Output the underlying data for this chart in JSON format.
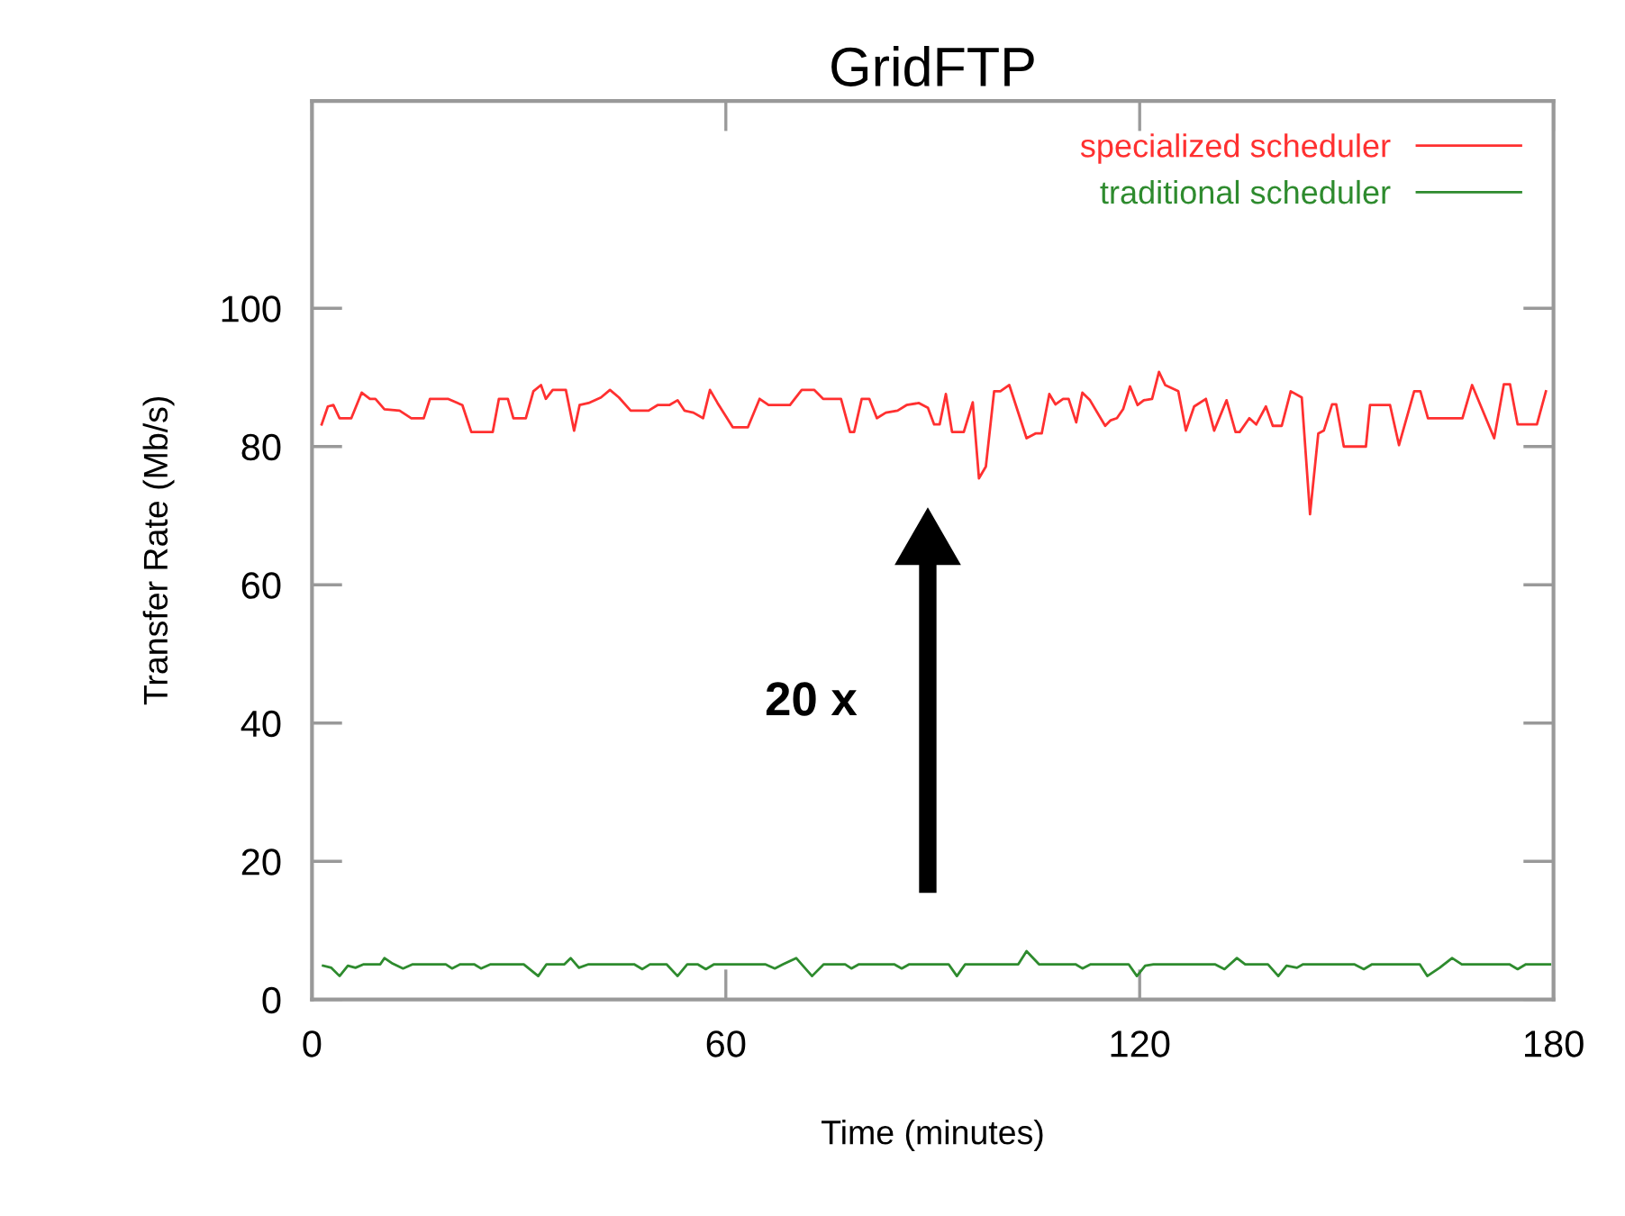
{
  "chart_data": {
    "type": "line",
    "title": "GridFTP",
    "xlabel": "Time (minutes)",
    "ylabel": "Transfer Rate (Mb/s)",
    "xlim": [
      0,
      180
    ],
    "xticks": [
      0,
      60,
      120,
      180
    ],
    "ylim": [
      0,
      130
    ],
    "yticks": [
      0,
      20,
      40,
      60,
      80,
      100
    ],
    "grid": false,
    "legend": "top right",
    "marker": "none",
    "line_style": "solid",
    "annotations": [
      "20 x"
    ],
    "series": [
      {
        "name": "specialized scheduler",
        "color": "#ff3030",
        "x": [
          1.4,
          2.3,
          3.1,
          4.0,
          5.7,
          7.2,
          8.4,
          9.2,
          10.5,
          12.7,
          14.4,
          16.2,
          17.1,
          19.7,
          21.8,
          23.1,
          26.2,
          27.1,
          28.4,
          29.2,
          31.0,
          32.1,
          33.2,
          33.9,
          34.9,
          36.8,
          38.0,
          38.8,
          40.1,
          41.9,
          43.2,
          44.5,
          46.2,
          48.8,
          50.1,
          51.8,
          53.0,
          54.0,
          55.3,
          56.7,
          57.7,
          58.8,
          61.0,
          63.2,
          64.9,
          66.2,
          69.3,
          71.0,
          72.8,
          74.1,
          76.7,
          78.0,
          78.6,
          79.7,
          80.8,
          81.9,
          83.2,
          84.9,
          86.2,
          88.0,
          89.3,
          90.2,
          91.0,
          91.9,
          92.8,
          94.5,
          95.8,
          96.7,
          97.7,
          98.9,
          99.8,
          101.1,
          103.6,
          104.9,
          105.8,
          106.9,
          107.8,
          108.9,
          109.7,
          110.8,
          111.7,
          112.8,
          115.0,
          115.8,
          116.7,
          117.6,
          118.6,
          119.7,
          120.6,
          121.8,
          122.8,
          123.7,
          125.6,
          126.7,
          127.9,
          129.6,
          130.8,
          132.6,
          133.9,
          134.5,
          135.9,
          136.9,
          138.3,
          139.3,
          140.6,
          141.9,
          143.5,
          144.7,
          145.9,
          146.7,
          147.9,
          148.5,
          149.6,
          152.8,
          153.4,
          156.3,
          157.6,
          159.8,
          160.7,
          161.8,
          166.8,
          168.2,
          171.4,
          172.8,
          173.7,
          174.8,
          177.6,
          178.9
        ],
        "values": [
          83.2,
          85.8,
          86.0,
          84.1,
          84.1,
          87.8,
          86.9,
          86.9,
          85.4,
          85.2,
          84.1,
          84.1,
          86.9,
          86.9,
          86.0,
          82.1,
          82.1,
          86.9,
          86.9,
          84.1,
          84.1,
          88.0,
          88.9,
          86.9,
          88.2,
          88.2,
          82.3,
          86.0,
          86.3,
          87.1,
          88.2,
          87.1,
          85.2,
          85.2,
          86.0,
          86.0,
          86.7,
          85.2,
          84.9,
          84.1,
          88.2,
          86.3,
          82.8,
          82.8,
          86.9,
          86.0,
          86.0,
          88.2,
          88.2,
          86.9,
          86.9,
          82.1,
          82.1,
          86.9,
          86.9,
          84.1,
          84.9,
          85.2,
          86.0,
          86.3,
          85.6,
          83.2,
          83.2,
          87.6,
          82.1,
          82.1,
          86.4,
          75.4,
          77.1,
          88.0,
          88.0,
          88.9,
          81.2,
          81.9,
          81.9,
          87.6,
          86.1,
          86.9,
          86.9,
          83.5,
          87.8,
          86.7,
          83.0,
          83.8,
          84.1,
          85.4,
          88.7,
          86.0,
          86.7,
          86.9,
          90.8,
          88.9,
          88.0,
          82.3,
          85.8,
          86.9,
          82.3,
          86.7,
          82.1,
          82.1,
          84.1,
          83.2,
          85.8,
          83.0,
          83.0,
          88.0,
          87.1,
          70.2,
          81.9,
          82.3,
          86.1,
          86.1,
          80.0,
          80.0,
          86.0,
          86.0,
          80.2,
          88.0,
          88.0,
          84.1,
          84.1,
          88.9,
          81.2,
          89.0,
          89.0,
          83.2,
          83.2,
          88.0
        ]
      },
      {
        "name": "traditional scheduler",
        "color": "#2e8b2e",
        "x": [
          1.6,
          2.8,
          4.0,
          5.2,
          6.3,
          7.5,
          9.9,
          10.5,
          11.7,
          13.2,
          14.6,
          19.4,
          20.3,
          21.5,
          23.5,
          24.5,
          25.9,
          30.7,
          32.8,
          34.0,
          36.6,
          37.5,
          38.7,
          40.1,
          46.7,
          47.9,
          49.0,
          51.4,
          53.0,
          54.4,
          55.9,
          57.1,
          58.3,
          65.7,
          67.1,
          68.3,
          70.2,
          71.0,
          72.5,
          74.2,
          77.3,
          78.2,
          79.3,
          84.4,
          85.5,
          86.6,
          92.3,
          93.5,
          94.7,
          102.4,
          103.6,
          105.4,
          110.7,
          111.7,
          112.9,
          118.4,
          119.6,
          120.8,
          122.0,
          130.9,
          132.3,
          134.1,
          135.3,
          138.6,
          140.1,
          141.3,
          142.8,
          143.7,
          151.1,
          152.5,
          153.7,
          160.6,
          161.7,
          163.5,
          165.3,
          166.7,
          173.6,
          174.8,
          176.0,
          179.5
        ],
        "values": [
          4.9,
          4.6,
          3.4,
          4.9,
          4.6,
          5.1,
          5.1,
          6.0,
          5.2,
          4.5,
          5.1,
          5.1,
          4.5,
          5.1,
          5.1,
          4.5,
          5.1,
          5.1,
          3.4,
          5.1,
          5.1,
          6.0,
          4.6,
          5.1,
          5.1,
          4.4,
          5.1,
          5.1,
          3.4,
          5.1,
          5.1,
          4.4,
          5.1,
          5.1,
          4.5,
          5.1,
          6.0,
          5.1,
          3.4,
          5.1,
          5.1,
          4.5,
          5.1,
          5.1,
          4.5,
          5.1,
          5.1,
          3.4,
          5.1,
          5.1,
          7.0,
          5.1,
          5.1,
          4.5,
          5.1,
          5.1,
          3.4,
          4.9,
          5.1,
          5.1,
          4.4,
          6.0,
          5.1,
          5.1,
          3.4,
          4.9,
          4.6,
          5.1,
          5.1,
          4.4,
          5.1,
          5.1,
          3.4,
          4.6,
          6.0,
          5.1,
          5.1,
          4.4,
          5.1,
          5.1
        ]
      }
    ]
  }
}
